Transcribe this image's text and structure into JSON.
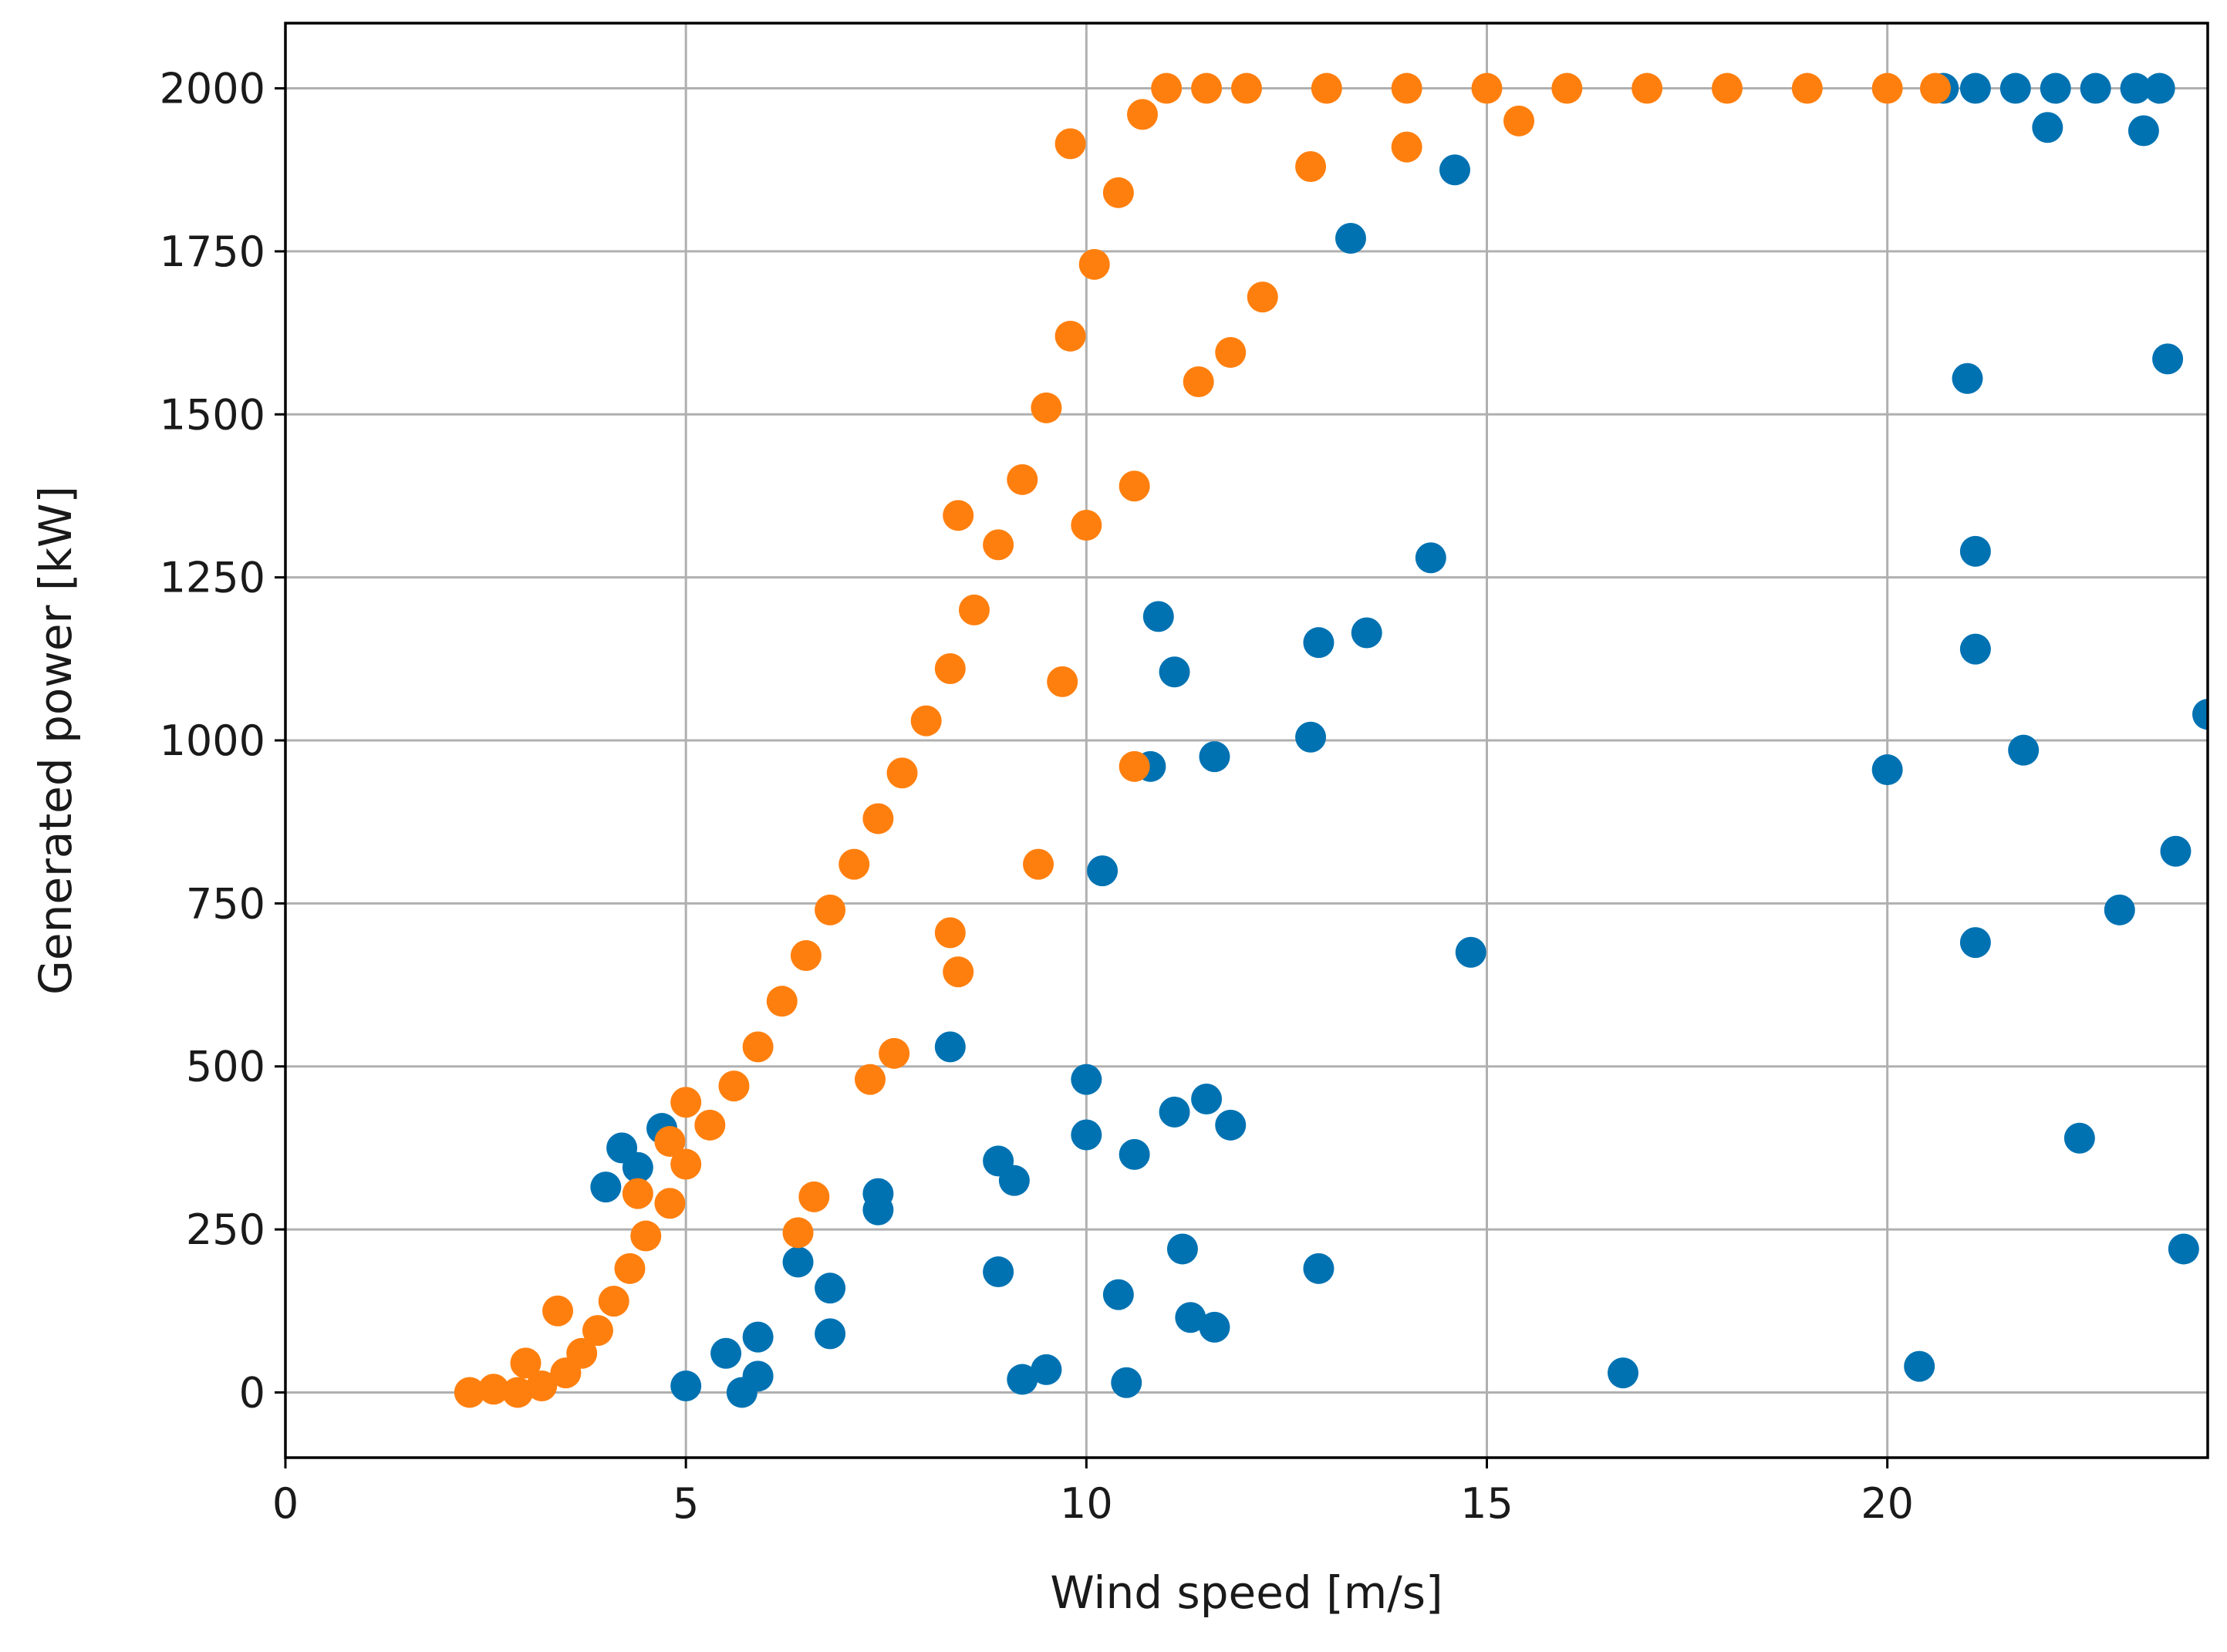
{
  "chart_data": {
    "type": "scatter",
    "title": "",
    "xlabel": "Wind speed [m/s]",
    "ylabel": "Generated power [kW]",
    "xlim": [
      0,
      24
    ],
    "ylim": [
      -100,
      2100
    ],
    "xticks": [
      0,
      5,
      10,
      15,
      20
    ],
    "yticks": [
      0,
      250,
      500,
      750,
      1000,
      1250,
      1500,
      1750,
      2000
    ],
    "xtick_labels": [
      "0",
      "5",
      "10",
      "15",
      "20"
    ],
    "ytick_labels": [
      "0",
      "250",
      "500",
      "750",
      "1000",
      "1250",
      "1500",
      "1750",
      "2000"
    ],
    "grid": true,
    "legend": "none",
    "series": [
      {
        "color": "#0072B2",
        "points": [
          [
            23.4,
            2000
          ],
          [
            23.1,
            2000
          ],
          [
            22.6,
            2000
          ],
          [
            22.1,
            2000
          ],
          [
            21.6,
            2000
          ],
          [
            21.1,
            2000
          ],
          [
            20.7,
            2000
          ],
          [
            22.0,
            1940
          ],
          [
            23.2,
            1935
          ],
          [
            14.6,
            1875
          ],
          [
            13.3,
            1770
          ],
          [
            21.0,
            1555
          ],
          [
            23.5,
            1585
          ],
          [
            14.3,
            1280
          ],
          [
            21.1,
            1290
          ],
          [
            10.9,
            1190
          ],
          [
            11.1,
            1105
          ],
          [
            12.9,
            1150
          ],
          [
            13.5,
            1165
          ],
          [
            21.1,
            1140
          ],
          [
            12.8,
            1005
          ],
          [
            10.8,
            960
          ],
          [
            11.6,
            975
          ],
          [
            20.0,
            955
          ],
          [
            21.7,
            985
          ],
          [
            24.0,
            1040
          ],
          [
            10.2,
            800
          ],
          [
            23.6,
            830
          ],
          [
            14.8,
            675
          ],
          [
            21.1,
            690
          ],
          [
            22.9,
            740
          ],
          [
            8.3,
            530
          ],
          [
            10.0,
            480
          ],
          [
            10.0,
            395
          ],
          [
            11.1,
            430
          ],
          [
            11.5,
            450
          ],
          [
            11.8,
            410
          ],
          [
            10.6,
            365
          ],
          [
            8.9,
            355
          ],
          [
            9.1,
            325
          ],
          [
            4.7,
            405
          ],
          [
            4.2,
            375
          ],
          [
            4.4,
            345
          ],
          [
            4.0,
            315
          ],
          [
            7.4,
            305
          ],
          [
            7.4,
            280
          ],
          [
            6.4,
            200
          ],
          [
            6.8,
            160
          ],
          [
            8.9,
            185
          ],
          [
            11.2,
            220
          ],
          [
            12.9,
            190
          ],
          [
            10.4,
            150
          ],
          [
            11.3,
            115
          ],
          [
            11.6,
            100
          ],
          [
            6.8,
            90
          ],
          [
            5.9,
            85
          ],
          [
            5.5,
            60
          ],
          [
            5.9,
            25
          ],
          [
            5.7,
            0
          ],
          [
            5.0,
            10
          ],
          [
            9.5,
            35
          ],
          [
            9.2,
            20
          ],
          [
            10.5,
            15
          ],
          [
            16.7,
            30
          ],
          [
            20.4,
            40
          ],
          [
            22.4,
            390
          ],
          [
            23.7,
            220
          ]
        ]
      },
      {
        "color": "#FF7F0E",
        "points": [
          [
            2.3,
            0
          ],
          [
            2.6,
            5
          ],
          [
            2.9,
            0
          ],
          [
            3.2,
            10
          ],
          [
            3.5,
            30
          ],
          [
            3.7,
            60
          ],
          [
            3.9,
            95
          ],
          [
            4.1,
            140
          ],
          [
            4.3,
            190
          ],
          [
            4.5,
            240
          ],
          [
            4.8,
            290
          ],
          [
            5.0,
            350
          ],
          [
            5.3,
            410
          ],
          [
            5.6,
            470
          ],
          [
            5.9,
            530
          ],
          [
            6.2,
            600
          ],
          [
            6.5,
            670
          ],
          [
            6.8,
            740
          ],
          [
            7.1,
            810
          ],
          [
            7.4,
            880
          ],
          [
            7.7,
            950
          ],
          [
            8.0,
            1030
          ],
          [
            8.3,
            1110
          ],
          [
            8.6,
            1200
          ],
          [
            8.9,
            1300
          ],
          [
            9.2,
            1400
          ],
          [
            9.5,
            1510
          ],
          [
            9.8,
            1620
          ],
          [
            10.1,
            1730
          ],
          [
            10.4,
            1840
          ],
          [
            10.7,
            1960
          ],
          [
            11.0,
            2000
          ],
          [
            11.5,
            2000
          ],
          [
            12.0,
            2000
          ],
          [
            13.0,
            2000
          ],
          [
            14.0,
            2000
          ],
          [
            15.0,
            2000
          ],
          [
            16.0,
            2000
          ],
          [
            17.0,
            2000
          ],
          [
            18.0,
            2000
          ],
          [
            19.0,
            2000
          ],
          [
            20.0,
            2000
          ],
          [
            20.6,
            2000
          ],
          [
            12.2,
            1680
          ],
          [
            11.8,
            1595
          ],
          [
            11.4,
            1550
          ],
          [
            10.6,
            1390
          ],
          [
            10.0,
            1330
          ],
          [
            8.4,
            1345
          ],
          [
            9.4,
            810
          ],
          [
            10.6,
            960
          ],
          [
            9.7,
            1090
          ],
          [
            8.3,
            705
          ],
          [
            8.4,
            645
          ],
          [
            7.6,
            520
          ],
          [
            7.3,
            480
          ],
          [
            6.6,
            300
          ],
          [
            6.4,
            245
          ],
          [
            5.0,
            445
          ],
          [
            4.8,
            385
          ],
          [
            4.4,
            305
          ],
          [
            3.4,
            125
          ],
          [
            3.0,
            45
          ],
          [
            9.8,
            1915
          ],
          [
            14.0,
            1910
          ],
          [
            15.4,
            1950
          ],
          [
            12.8,
            1880
          ]
        ]
      }
    ]
  }
}
